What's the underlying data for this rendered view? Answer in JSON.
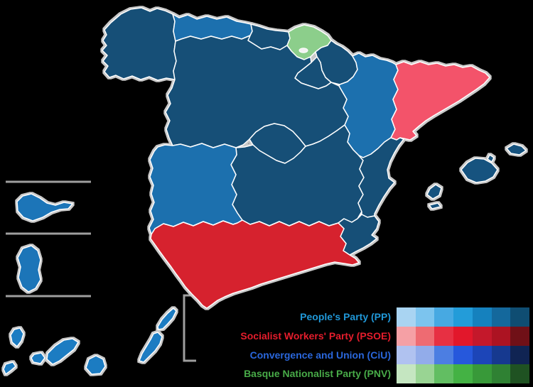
{
  "page": {
    "background": "#000000"
  },
  "map": {
    "stroke_color": "#ffffff",
    "halo_color": "#c9c9c9",
    "inset_line_color": "#9e9e9e",
    "regions": [
      {
        "id": "galicia",
        "name": "Galicia",
        "party": "PP",
        "fill": "#134F77"
      },
      {
        "id": "asturias",
        "name": "Asturias",
        "party": "PP",
        "fill": "#1C70AE"
      },
      {
        "id": "cantabria",
        "name": "Cantabria",
        "party": "PP",
        "fill": "#134F77"
      },
      {
        "id": "basque-country",
        "name": "Basque Country",
        "party": "PNV",
        "fill": "#8CCE8B"
      },
      {
        "id": "navarre",
        "name": "Navarre",
        "party": "PP",
        "fill": "#134F77"
      },
      {
        "id": "la-rioja",
        "name": "La Rioja",
        "party": "PP",
        "fill": "#134F77"
      },
      {
        "id": "aragon",
        "name": "Aragon",
        "party": "PP",
        "fill": "#1C70AE"
      },
      {
        "id": "catalonia",
        "name": "Catalonia",
        "party": "PSOE",
        "fill": "#F3536A"
      },
      {
        "id": "castile-leon",
        "name": "Castile and Leon",
        "party": "PP",
        "fill": "#134F77"
      },
      {
        "id": "madrid",
        "name": "Community of Madrid",
        "party": "PP",
        "fill": "#134F77"
      },
      {
        "id": "castilla-la-mancha",
        "name": "Castilla-La Mancha",
        "party": "PP",
        "fill": "#134F77"
      },
      {
        "id": "extremadura",
        "name": "Extremadura",
        "party": "PP",
        "fill": "#1C70AE"
      },
      {
        "id": "valencia",
        "name": "Valencian Community",
        "party": "PP",
        "fill": "#134F77"
      },
      {
        "id": "murcia",
        "name": "Region of Murcia",
        "party": "PP",
        "fill": "#134F77"
      },
      {
        "id": "andalusia",
        "name": "Andalusia",
        "party": "PSOE",
        "fill": "#D6202E"
      },
      {
        "id": "balearic-islands",
        "name": "Balearic Islands",
        "party": "PP",
        "fill": "#15537F"
      },
      {
        "id": "canary-islands",
        "name": "Canary Islands",
        "party": "PP",
        "fill": "#1B7CC2"
      },
      {
        "id": "ceuta",
        "name": "Ceuta",
        "party": "PP",
        "fill": "#1C74B8"
      },
      {
        "id": "melilla",
        "name": "Melilla",
        "party": "PP",
        "fill": "#1C74B8"
      }
    ],
    "details": [
      {
        "id": "trevino",
        "name": "Trevino enclave",
        "fill": "#F2F2F2"
      }
    ]
  },
  "legend": {
    "position": "bottom-right",
    "rows": [
      {
        "id": "pp",
        "label": "People's Party (PP)",
        "label_color": "#2097D7",
        "swatches": [
          "#A9D4F2",
          "#7CC4EE",
          "#47A9E2",
          "#239CD9",
          "#1581BE",
          "#14689C",
          "#0F4D72"
        ]
      },
      {
        "id": "psoe",
        "label": "Socialist Workers' Party (PSOE)",
        "label_color": "#E51D2C",
        "swatches": [
          "#F5A0A5",
          "#EE6B72",
          "#E73043",
          "#E2172B",
          "#C4182B",
          "#AC1322",
          "#701017"
        ]
      },
      {
        "id": "ciu",
        "label": "Convergence and Union (CiU)",
        "label_color": "#2A67DC",
        "swatches": [
          "#B0C2F0",
          "#92ACEA",
          "#4C7EE2",
          "#2658DC",
          "#1C45B8",
          "#16398F",
          "#102453"
        ]
      },
      {
        "id": "pnv",
        "label": "Basque Nationalist Party (PNV)",
        "label_color": "#48AB48",
        "swatches": [
          "#C5E6C1",
          "#99D493",
          "#62BE62",
          "#44B244",
          "#389939",
          "#2F8133",
          "#1F5222"
        ]
      }
    ]
  }
}
